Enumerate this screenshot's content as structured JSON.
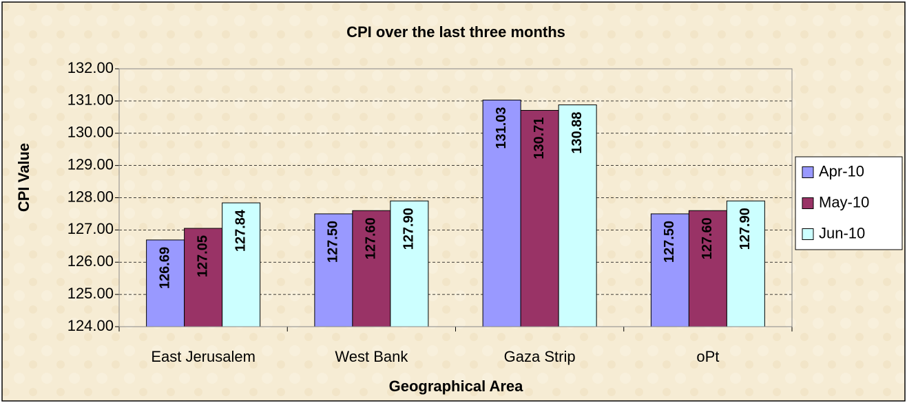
{
  "chart_data": {
    "type": "bar",
    "title": "CPI over the last three months",
    "x_label": "Geographical Area",
    "y_label": "CPI Value",
    "categories": [
      "East Jerusalem",
      "West Bank",
      "Gaza Strip",
      "oPt"
    ],
    "series": [
      {
        "name": "Apr-10",
        "color": "#9999ff",
        "values": [
          126.69,
          127.5,
          131.03,
          127.5
        ],
        "value_labels": [
          "126.69",
          "127.50",
          "131.03",
          "127.50"
        ]
      },
      {
        "name": "May-10",
        "color": "#993366",
        "values": [
          127.05,
          127.6,
          130.71,
          127.6
        ],
        "value_labels": [
          "127.05",
          "127.60",
          "130.71",
          "127.60"
        ]
      },
      {
        "name": "Jun-10",
        "color": "#ccffff",
        "values": [
          127.84,
          127.9,
          130.88,
          127.9
        ],
        "value_labels": [
          "127.84",
          "127.90",
          "130.88",
          "127.90"
        ]
      }
    ],
    "ylim": [
      124,
      132
    ],
    "yticks": [
      {
        "value": 124,
        "label": "124.00"
      },
      {
        "value": 125,
        "label": "125.00"
      },
      {
        "value": 126,
        "label": "126.00"
      },
      {
        "value": 127,
        "label": "127.00"
      },
      {
        "value": 128,
        "label": "128.00"
      },
      {
        "value": 129,
        "label": "129.00"
      },
      {
        "value": 130,
        "label": "130.00"
      },
      {
        "value": 131,
        "label": "131.00"
      },
      {
        "value": 132,
        "label": "132.00"
      }
    ],
    "grid": true,
    "legend": "right"
  }
}
